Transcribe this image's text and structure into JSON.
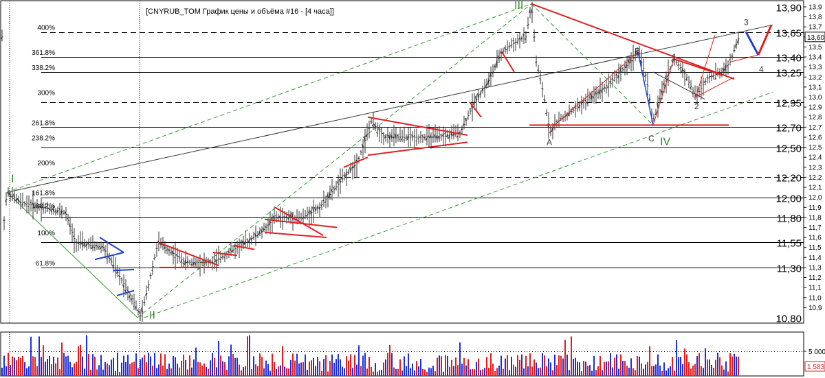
{
  "window": {
    "title": "[CNYRUB_TOM График цены и объёма #16 - [4 часа]]"
  },
  "chart_data": [
    {
      "type": "line",
      "subtype": "candlestick-bars",
      "title": "[CNYRUB_TOM График цены и объёма #16 - [4 часа]]",
      "ylim": [
        10.8,
        13.95
      ],
      "y_ticks": [
        "13,9",
        "13,8",
        "13,7",
        "13,6",
        "13,5",
        "13,4",
        "13,3",
        "13,2",
        "13,1",
        "13,0",
        "12,9",
        "12,8",
        "12,7",
        "12,6",
        "12,5",
        "12,4",
        "12,3",
        "12,2",
        "12,1",
        "12,0",
        "11,9",
        "11,8",
        "11,7",
        "11,6",
        "11,5",
        "11,4",
        "11,3",
        "11,2",
        "11,1",
        "11,0",
        "10,9"
      ],
      "last_price": "13,60",
      "level_lines": [
        {
          "label": "13,90",
          "value": 13.9
        },
        {
          "label": "13,65",
          "value": 13.65
        },
        {
          "label": "13,40",
          "value": 13.4
        },
        {
          "label": "13,25",
          "value": 13.25
        },
        {
          "label": "12,95",
          "value": 12.95
        },
        {
          "label": "12,70",
          "value": 12.7
        },
        {
          "label": "12,50",
          "value": 12.5
        },
        {
          "label": "12,20",
          "value": 12.2
        },
        {
          "label": "12,00",
          "value": 12.0
        },
        {
          "label": "11,80",
          "value": 11.8
        },
        {
          "label": "11,55",
          "value": 11.55
        },
        {
          "label": "11,30",
          "value": 11.3
        },
        {
          "label": "10,80",
          "value": 10.8
        }
      ],
      "fib_levels": [
        {
          "label": "400%",
          "value": 13.65
        },
        {
          "label": "361.8%",
          "value": 13.4
        },
        {
          "label": "338.2%",
          "value": 13.25
        },
        {
          "label": "300%",
          "value": 13.0
        },
        {
          "label": "261.8%",
          "value": 12.7
        },
        {
          "label": "238.2%",
          "value": 12.55
        },
        {
          "label": "200%",
          "value": 12.3
        },
        {
          "label": "161.8%",
          "value": 12.0
        },
        {
          "label": "138.2%",
          "value": 11.87
        },
        {
          "label": "100%",
          "value": 11.6
        },
        {
          "label": "61.8%",
          "value": 11.3
        }
      ],
      "wave_labels": [
        {
          "text": "I",
          "color": "#2e8b2e"
        },
        {
          "text": "II",
          "color": "#2e8b2e"
        },
        {
          "text": "III",
          "color": "#2e8b2e"
        },
        {
          "text": "IV",
          "color": "#2e8b2e"
        },
        {
          "text": "A",
          "color": "#333333"
        },
        {
          "text": "B",
          "color": "#333333"
        },
        {
          "text": "C",
          "color": "#333333"
        },
        {
          "text": "1",
          "color": "#333333"
        },
        {
          "text": "2",
          "color": "#333333"
        },
        {
          "text": "3",
          "color": "#333333"
        },
        {
          "text": "4",
          "color": "#333333"
        }
      ],
      "key_points": [
        {
          "label": "I",
          "value": 12.05
        },
        {
          "label": "II",
          "value": 10.8
        },
        {
          "label": "III",
          "value": 13.93
        },
        {
          "label": "A",
          "value": 12.65
        },
        {
          "label": "B",
          "value": 13.45
        },
        {
          "label": "C",
          "value": 12.7
        },
        {
          "label": "1",
          "value": 13.38
        },
        {
          "label": "2",
          "value": 13.0
        },
        {
          "label": "3",
          "value": 13.65
        },
        {
          "label": "4",
          "value": 13.42
        }
      ],
      "colors": {
        "up": "#3a3a3a",
        "pattern_red": "#e02020",
        "pattern_blue": "#2040d0",
        "channel_green": "#2e9b2e"
      }
    },
    {
      "type": "bar",
      "subtype": "volume",
      "y_ticks": [
        "5 000"
      ],
      "last_value": "1 583",
      "colors": {
        "up": "#1a2ee8",
        "down": "#e81a1a"
      }
    }
  ]
}
